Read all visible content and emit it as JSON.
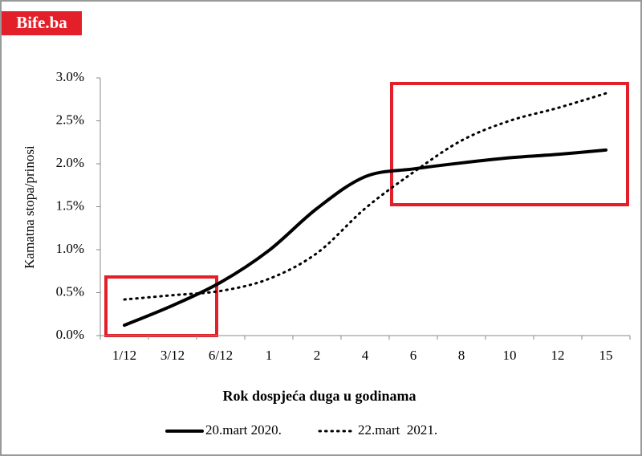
{
  "logo": "Bife.ba",
  "chart_data": {
    "type": "line",
    "y_label": "Kamatna stopa/prinosi",
    "x_label": "Rok dospjeća duga u godinama",
    "categories": [
      "1/12",
      "3/12",
      "6/12",
      "1",
      "2",
      "4",
      "6",
      "8",
      "10",
      "12",
      "15"
    ],
    "series": [
      {
        "name": "20.mart 2020.",
        "color": "#000000",
        "style": "solid",
        "values": [
          0.12,
          0.35,
          0.62,
          0.99,
          1.48,
          1.85,
          1.94,
          2.01,
          2.07,
          2.11,
          2.16
        ]
      },
      {
        "name": "22.mart  2021.",
        "color": "#000000",
        "style": "dotted",
        "values": [
          0.42,
          0.47,
          0.52,
          0.66,
          0.96,
          1.48,
          1.9,
          2.27,
          2.5,
          2.65,
          2.82
        ]
      }
    ],
    "ylim": [
      0,
      3
    ],
    "yticks": [
      {
        "value": 0,
        "label": "0.0%"
      },
      {
        "value": 0.5,
        "label": "0.5%"
      },
      {
        "value": 1,
        "label": "1.0%"
      },
      {
        "value": 1.5,
        "label": "1.5%"
      },
      {
        "value": 2,
        "label": "2.0%"
      },
      {
        "value": 2.5,
        "label": "2.5%"
      },
      {
        "value": 3,
        "label": "3.0%"
      }
    ],
    "grid": false,
    "legend": "bottom"
  }
}
